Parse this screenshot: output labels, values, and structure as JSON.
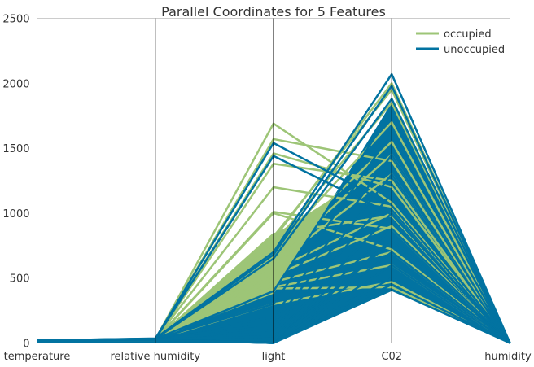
{
  "chart_data": {
    "type": "parallel_coordinates",
    "title": "Parallel Coordinates for 5 Features",
    "axes": [
      "temperature",
      "relative humidity",
      "light",
      "C02",
      "humidity"
    ],
    "ylim": [
      0,
      2500
    ],
    "yticks": [
      "0",
      "500",
      "1000",
      "1500",
      "2000",
      "2500"
    ],
    "ytick_values": [
      0,
      500,
      1000,
      1500,
      2000,
      2500
    ],
    "grid": false,
    "legend_position": "top-right",
    "colors": {
      "occupied": "#9dc577",
      "unoccupied": "#0273a1",
      "axis": "#000000"
    },
    "series": [
      {
        "name": "occupied",
        "lines": [
          [
            21,
            27,
            1690,
            1080,
            0.004
          ],
          [
            22,
            30,
            1570,
            1400,
            0.004
          ],
          [
            21,
            28,
            1460,
            1200,
            0.004
          ],
          [
            21,
            26,
            1380,
            1250,
            0.004
          ],
          [
            22,
            31,
            1200,
            1050,
            0.004
          ],
          [
            21,
            27,
            1010,
            880,
            0.004
          ],
          [
            21,
            25,
            1000,
            720,
            0.004
          ],
          [
            21,
            24,
            840,
            980,
            0.004
          ],
          [
            20,
            28,
            820,
            1950,
            0.004
          ],
          [
            20,
            26,
            800,
            2000,
            0.004
          ],
          [
            21,
            29,
            760,
            1850,
            0.004
          ],
          [
            21,
            30,
            720,
            1700,
            0.004
          ],
          [
            20,
            27,
            680,
            1550,
            0.004
          ],
          [
            20,
            25,
            640,
            1450,
            0.004
          ],
          [
            21,
            29,
            600,
            1300,
            0.004
          ],
          [
            21,
            23,
            560,
            1000,
            0.004
          ],
          [
            20,
            26,
            520,
            900,
            0.004
          ],
          [
            20,
            24,
            470,
            700,
            0.004
          ],
          [
            20,
            22,
            430,
            600,
            0.004
          ],
          [
            21,
            27,
            420,
            430,
            0.004
          ],
          [
            20,
            25,
            300,
            470,
            0.004
          ]
        ]
      },
      {
        "name": "unoccupied",
        "lines": [
          [
            20,
            33,
            1540,
            1060,
            0.004
          ],
          [
            20,
            30,
            1440,
            990,
            0.004
          ],
          [
            20,
            35,
            700,
            2070,
            0.004
          ],
          [
            20,
            34,
            680,
            1980,
            0.004
          ],
          [
            20,
            32,
            650,
            1880,
            0.004
          ],
          [
            20,
            31,
            400,
            1780,
            0.004
          ],
          [
            20,
            30,
            300,
            1620,
            0.004
          ],
          [
            20,
            33,
            200,
            1450,
            0.004
          ],
          [
            20,
            29,
            150,
            1300,
            0.004
          ],
          [
            20,
            31,
            100,
            1150,
            0.004
          ],
          [
            20,
            32,
            50,
            1000,
            0.004
          ],
          [
            20,
            28,
            20,
            880,
            0.004
          ],
          [
            20,
            27,
            5,
            800,
            0.004
          ],
          [
            20,
            30,
            0,
            780,
            0.004
          ],
          [
            20,
            26,
            0,
            700,
            0.004
          ],
          [
            20,
            25,
            0,
            600,
            0.004
          ],
          [
            20,
            24,
            0,
            500,
            0.004
          ],
          [
            20,
            23,
            0,
            450,
            0.004
          ],
          [
            20,
            22,
            0,
            410,
            0.004
          ]
        ]
      }
    ]
  }
}
